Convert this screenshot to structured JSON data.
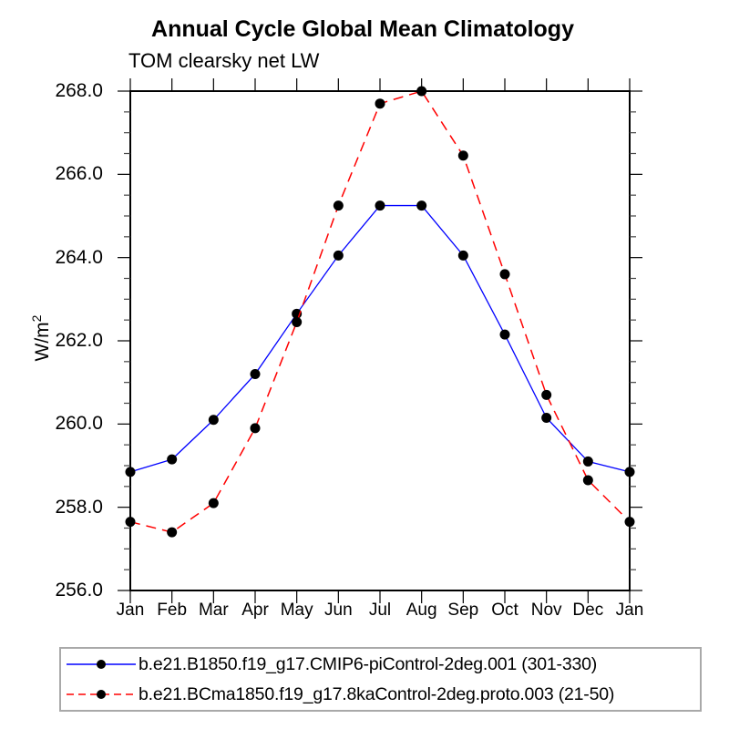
{
  "title": "Annual Cycle Global Mean Climatology",
  "subtitle": "TOM clearsky net LW",
  "chart_data": {
    "type": "line",
    "title": "Annual Cycle Global Mean Climatology",
    "subtitle": "TOM clearsky net LW",
    "xlabel": "",
    "ylabel": "W/m²",
    "x_categories": [
      "Jan",
      "Feb",
      "Mar",
      "Apr",
      "May",
      "Jun",
      "Jul",
      "Aug",
      "Sep",
      "Oct",
      "Nov",
      "Dec",
      "Jan"
    ],
    "ylim": [
      256.0,
      268.0
    ],
    "y_major_tick_step": 2.0,
    "y_minor_tick_step": 0.5,
    "y_tick_labels": [
      "268.0",
      "266.0",
      "264.0",
      "262.0",
      "260.0",
      "258.0",
      "256.0"
    ],
    "grid": false,
    "legend_position": "bottom",
    "marker": "filled-circle",
    "marker_color": "#000000",
    "frame_color": "#000000",
    "series": [
      {
        "name": "b.e21.B1850.f19_g17.CMIP6-piControl-2deg.001 (301-330)",
        "color": "#0000ff",
        "line_style": "solid",
        "values": [
          258.85,
          259.15,
          260.1,
          261.2,
          262.65,
          264.05,
          265.25,
          265.25,
          264.05,
          262.15,
          260.15,
          259.1,
          258.85
        ]
      },
      {
        "name": "b.e21.BCma1850.f19_g17.8kaControl-2deg.proto.003 (21-50)",
        "color": "#ff0000",
        "line_style": "dashed",
        "values": [
          257.65,
          257.4,
          258.1,
          259.9,
          262.45,
          265.25,
          267.7,
          268.0,
          266.45,
          263.6,
          260.7,
          258.65,
          257.65
        ]
      }
    ]
  }
}
